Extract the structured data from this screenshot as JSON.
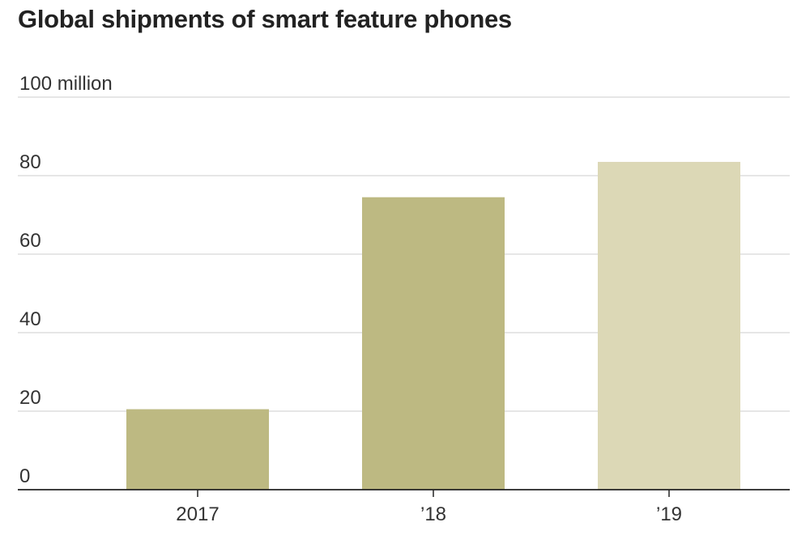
{
  "chart_data": {
    "type": "bar",
    "title": "Global shipments of smart feature phones",
    "unit_label": "million",
    "categories": [
      "2017",
      "’18",
      "’19"
    ],
    "values": [
      20.5,
      74.5,
      83.5
    ],
    "bar_colors": [
      "#bdb982",
      "#bdb982",
      "#dcd8b6"
    ],
    "ylim": [
      0,
      100
    ],
    "yticks": [
      0,
      20,
      40,
      60,
      80,
      100
    ],
    "grid": true,
    "legend": "none"
  }
}
